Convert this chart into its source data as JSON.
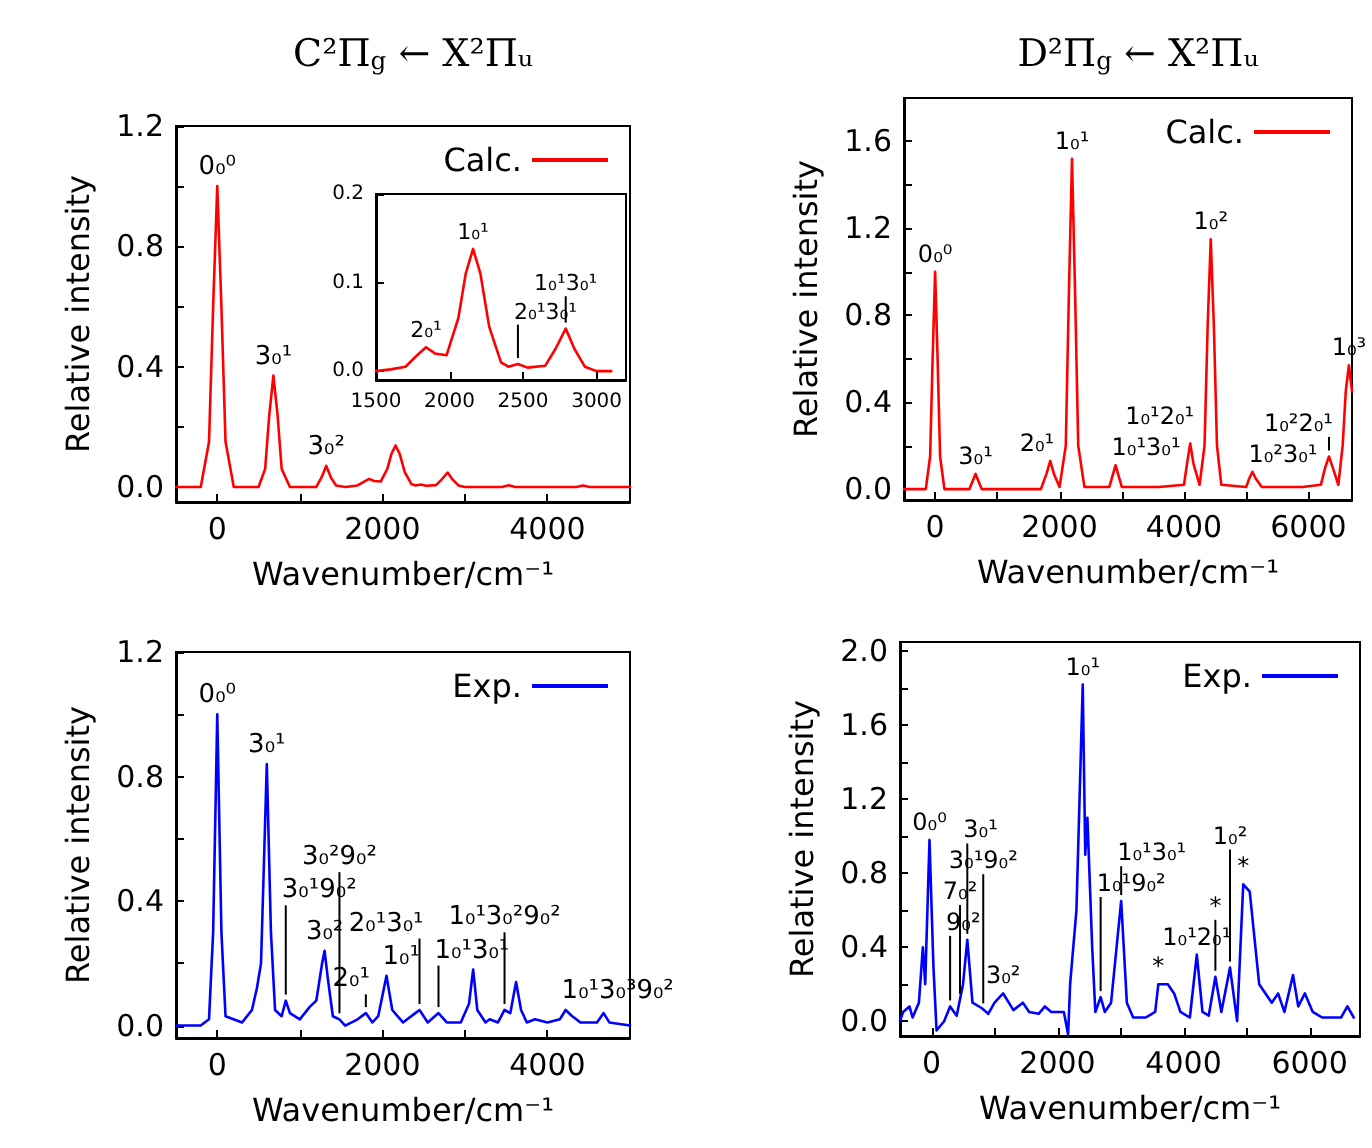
{
  "chart_data": [
    {
      "type": "line",
      "title": "C²Π$_{g}$ ← X²Πᵤ",
      "xlabel": "Wavenumber/cm⁻¹",
      "ylabel": "Relative intensity",
      "legend": "top right",
      "marker": "none",
      "x": [
        -500,
        -200,
        -100,
        -50,
        0,
        50,
        100,
        200,
        500,
        580,
        630,
        680,
        730,
        780,
        880,
        1200,
        1260,
        1320,
        1380,
        1440,
        1550,
        1700,
        1780,
        1840,
        1900,
        1980,
        2060,
        2110,
        2160,
        2210,
        2270,
        2350,
        2400,
        2465,
        2530,
        2650,
        2720,
        2790,
        2850,
        2920,
        3000,
        3450,
        3530,
        3610,
        4350,
        4430,
        4510,
        5000
      ],
      "series": [
        {
          "name": "Calc.",
          "color": "#ff0000",
          "values": [
            0,
            0,
            0.15,
            0.6,
            1.0,
            0.6,
            0.15,
            0,
            0,
            0.06,
            0.24,
            0.37,
            0.24,
            0.06,
            0,
            0,
            0.03,
            0.07,
            0.03,
            0.005,
            0,
            0.005,
            0.018,
            0.027,
            0.02,
            0.018,
            0.06,
            0.11,
            0.138,
            0.11,
            0.05,
            0.01,
            0.005,
            0.008,
            0.004,
            0.006,
            0.025,
            0.048,
            0.025,
            0.005,
            0,
            0,
            0.006,
            0,
            0,
            0.005,
            0,
            0
          ]
        }
      ],
      "xlim": [
        -500,
        5000
      ],
      "xticks": [
        0,
        {
          "value": 1000,
          "label": null
        },
        2000,
        {
          "value": 3000,
          "label": null
        },
        4000
      ],
      "ylim": [
        -0.05,
        1.2
      ],
      "yticks": [
        {
          "value": 0,
          "label": "0.0"
        },
        {
          "value": 0.2,
          "label": null
        },
        0.4,
        {
          "value": 0.6,
          "label": null
        },
        0.8,
        {
          "value": 1.0,
          "label": null
        },
        1.2
      ],
      "annotations": [
        {
          "text": "0₀⁰",
          "x": 0,
          "y": 1.0
        },
        {
          "text": "3₀¹",
          "x": 680,
          "y": 0.37
        },
        {
          "text": "3₀²",
          "x": 1320,
          "y": 0.07
        }
      ]
    },
    {
      "type": "line",
      "marker": "none",
      "x": [
        1500,
        1600,
        1700,
        1780,
        1840,
        1900,
        1980,
        2060,
        2110,
        2160,
        2210,
        2270,
        2350,
        2400,
        2465,
        2530,
        2650,
        2720,
        2790,
        2850,
        2920,
        3000,
        3100
      ],
      "series": [
        {
          "color": "#ff0000",
          "values": [
            0,
            0.002,
            0.005,
            0.018,
            0.027,
            0.02,
            0.018,
            0.06,
            0.11,
            0.138,
            0.11,
            0.05,
            0.01,
            0.005,
            0.008,
            0.004,
            0.006,
            0.025,
            0.048,
            0.025,
            0.005,
            0,
            0
          ]
        }
      ],
      "xlim": [
        1500,
        3200
      ],
      "xticks": [
        1500,
        2000,
        2500,
        3000
      ],
      "ylim": [
        -0.01,
        0.2
      ],
      "yticks": [
        {
          "value": 0,
          "label": "0.0"
        },
        0.1,
        0.2
      ],
      "annotations": [
        {
          "text": "2₀¹",
          "x": 1840,
          "y": 0.027
        },
        {
          "text": "1₀¹",
          "x": 2160,
          "y": 0.138
        },
        {
          "text": "2₀¹3₀¹",
          "x": 2465,
          "y": 0.008
        },
        {
          "text": "1₀¹3₀¹",
          "x": 2790,
          "y": 0.048
        }
      ]
    },
    {
      "type": "line",
      "title": "D²Π$_{g}$ ← X²Πᵤ",
      "xlabel": "Wavenumber/cm⁻¹",
      "ylabel": "Relative intensity",
      "legend": "top right",
      "marker": "none",
      "x": [
        -500,
        -150,
        -80,
        -40,
        0,
        40,
        80,
        150,
        550,
        650,
        750,
        1700,
        1790,
        1850,
        1910,
        2000,
        2100,
        2150,
        2200,
        2250,
        2300,
        2400,
        2800,
        2850,
        2900,
        2950,
        3000,
        3600,
        4000,
        4050,
        4100,
        4150,
        4250,
        4330,
        4380,
        4430,
        4480,
        4530,
        4600,
        5000,
        5050,
        5100,
        5150,
        5250,
        5900,
        6200,
        6270,
        6330,
        6390,
        6480,
        6550,
        6600,
        6650,
        6700
      ],
      "series": [
        {
          "name": "Calc.",
          "color": "#ff0000",
          "values": [
            0,
            0,
            0.15,
            0.6,
            1.0,
            0.6,
            0.15,
            0,
            0,
            0.07,
            0,
            0,
            0.07,
            0.13,
            0.07,
            0.01,
            0.2,
            0.9,
            1.52,
            0.9,
            0.2,
            0.01,
            0.01,
            0.06,
            0.11,
            0.06,
            0.01,
            0.01,
            0.02,
            0.12,
            0.21,
            0.12,
            0.02,
            0.2,
            0.75,
            1.15,
            0.75,
            0.2,
            0.02,
            0.01,
            0.05,
            0.08,
            0.05,
            0.01,
            0.01,
            0.02,
            0.1,
            0.15,
            0.1,
            0.02,
            0.2,
            0.45,
            0.57,
            0.45
          ]
        }
      ],
      "xlim": [
        -500,
        6700
      ],
      "xticks": [
        0,
        {
          "value": 1000,
          "label": null
        },
        2000,
        {
          "value": 3000,
          "label": null
        },
        4000,
        {
          "value": 5000,
          "label": null
        },
        6000
      ],
      "ylim": [
        -0.05,
        1.8
      ],
      "yticks": [
        {
          "value": 0,
          "label": "0.0"
        },
        {
          "value": 0.2,
          "label": null
        },
        0.4,
        {
          "value": 0.6,
          "label": null
        },
        0.8,
        {
          "value": 1.0,
          "label": null
        },
        1.2,
        {
          "value": 1.4,
          "label": null
        },
        1.6
      ],
      "annotations": [
        {
          "text": "0₀⁰",
          "x": 0,
          "y": 1.0
        },
        {
          "text": "3₀¹",
          "x": 650,
          "y": 0.07
        },
        {
          "text": "2₀¹",
          "x": 1850,
          "y": 0.13
        },
        {
          "text": "1₀¹",
          "x": 2200,
          "y": 1.52
        },
        {
          "text": "1₀¹3₀¹",
          "x": 2900,
          "y": 0.11
        },
        {
          "text": "1₀²",
          "x": 4430,
          "y": 1.15
        },
        {
          "text": "1₀¹2₀¹",
          "x": 4100,
          "y": 0.21
        },
        {
          "text": "1₀²3₀¹",
          "x": 5100,
          "y": 0.08
        },
        {
          "text": "1₀³",
          "x": 6650,
          "y": 0.57
        },
        {
          "text": "1₀²2₀¹",
          "x": 6330,
          "y": 0.15
        }
      ]
    },
    {
      "type": "line",
      "xlabel": "Wavenumber/cm⁻¹",
      "ylabel": "Relative intensity",
      "legend": "top right",
      "marker": "none",
      "x": [
        -500,
        -200,
        -100,
        -50,
        0,
        50,
        100,
        300,
        420,
        480,
        530,
        600,
        650,
        700,
        780,
        830,
        880,
        1000,
        1120,
        1200,
        1270,
        1300,
        1340,
        1400,
        1480,
        1550,
        1700,
        1800,
        1880,
        1950,
        2050,
        2120,
        2250,
        2400,
        2450,
        2550,
        2680,
        2780,
        2950,
        3050,
        3100,
        3150,
        3250,
        3300,
        3400,
        3480,
        3550,
        3620,
        3680,
        3750,
        3850,
        4000,
        4150,
        4220,
        4300,
        4400,
        4600,
        4680,
        4750,
        5000
      ],
      "series": [
        {
          "name": "Exp.",
          "color": "#0000ff",
          "values": [
            0,
            0,
            0.02,
            0.3,
            1.0,
            0.3,
            0.03,
            0.01,
            0.05,
            0.12,
            0.2,
            0.84,
            0.3,
            0.05,
            0.03,
            0.08,
            0.04,
            0.02,
            0.06,
            0.08,
            0.2,
            0.24,
            0.15,
            0.03,
            0.02,
            0,
            0.02,
            0.04,
            0.01,
            0.03,
            0.16,
            0.05,
            0.01,
            0.04,
            0.05,
            0.01,
            0.04,
            0.01,
            0.01,
            0.07,
            0.18,
            0.05,
            0.01,
            0.02,
            0.01,
            0.05,
            0.04,
            0.14,
            0.05,
            0.01,
            0.02,
            0.01,
            0.02,
            0.05,
            0.03,
            0.01,
            0.01,
            0.04,
            0.01,
            0
          ]
        }
      ],
      "xlim": [
        -500,
        5000
      ],
      "xticks": [
        0,
        {
          "value": 1000,
          "label": null
        },
        2000,
        {
          "value": 3000,
          "label": null
        },
        4000
      ],
      "ylim": [
        -0.04,
        1.2
      ],
      "yticks": [
        {
          "value": 0,
          "label": "0.0"
        },
        {
          "value": 0.2,
          "label": null
        },
        0.4,
        {
          "value": 0.6,
          "label": null
        },
        0.8,
        {
          "value": 1.0,
          "label": null
        },
        1.2
      ],
      "annotations": [
        {
          "text": "0₀⁰",
          "x": 0,
          "y": 1.0
        },
        {
          "text": "3₀¹",
          "x": 600,
          "y": 0.84
        },
        {
          "text": "3₀²",
          "x": 1300,
          "y": 0.24
        },
        {
          "text": "2₀¹",
          "x": 1800,
          "y": 0.04
        },
        {
          "text": "1₀¹",
          "x": 2050,
          "y": 0.16
        },
        {
          "text": "1₀¹3₀¹",
          "x": 2680,
          "y": 0.04
        },
        {
          "text": "2₀¹3₀¹",
          "x": 2450,
          "y": 0.05
        },
        {
          "text": "3₀¹9₀²",
          "x": 830,
          "y": 0.08
        },
        {
          "text": "3₀²9₀²",
          "x": 1480,
          "y": 0.02
        },
        {
          "text": "1₀¹3₀²9₀²",
          "x": 3480,
          "y": 0.05
        },
        {
          "text": "1₀¹3₀³9₀²",
          "x": 4220,
          "y": 0.05
        }
      ]
    },
    {
      "type": "line",
      "xlabel": "Wavenumber/cm⁻¹",
      "ylabel": "Relative intensity",
      "legend": "top right",
      "marker": "none",
      "x": [
        -500,
        -450,
        -350,
        -300,
        -200,
        -137,
        -100,
        -32,
        30,
        80,
        200,
        295,
        400,
        500,
        568,
        650,
        800,
        900,
        1000,
        1137,
        1300,
        1450,
        1550,
        1700,
        1800,
        1900,
        2100,
        2168,
        2200,
        2300,
        2400,
        2440,
        2474,
        2550,
        2600,
        2684,
        2750,
        2850,
        3010,
        3100,
        3200,
        3400,
        3550,
        3600,
        3750,
        3850,
        3950,
        4100,
        4210,
        4300,
        4400,
        4505,
        4600,
        4737,
        4850,
        4947,
        5050,
        5200,
        5400,
        5500,
        5600,
        5737,
        5820,
        5926,
        6050,
        6200,
        6500,
        6600,
        6700
      ],
      "series": [
        {
          "name": "Exp.",
          "color": "#0000ff",
          "values": [
            0,
            0.05,
            0.08,
            0.02,
            0.1,
            0.4,
            0.2,
            0.98,
            0.3,
            -0.05,
            0,
            0.08,
            0.03,
            0.2,
            0.44,
            0.1,
            0.07,
            0.04,
            0.1,
            0.15,
            0.06,
            0.1,
            0.05,
            0.04,
            0.08,
            0.05,
            0.05,
            -0.07,
            0.2,
            0.6,
            1.82,
            0.9,
            1.1,
            0.4,
            0.05,
            0.13,
            0.05,
            0.1,
            0.65,
            0.1,
            0.02,
            0.02,
            0.05,
            0.2,
            0.2,
            0.15,
            0.05,
            0.02,
            0.36,
            0.05,
            0.03,
            0.24,
            0.05,
            0.29,
            0,
            0.74,
            0.7,
            0.2,
            0.1,
            0.15,
            0.05,
            0.25,
            0.08,
            0.15,
            0.05,
            0.02,
            0.02,
            0.08,
            0.02
          ]
        }
      ],
      "xlim": [
        -500,
        6800
      ],
      "xticks": [
        0,
        {
          "value": 1000,
          "label": null
        },
        2000,
        {
          "value": 3000,
          "label": null
        },
        4000,
        {
          "value": 5000,
          "label": null
        },
        6000
      ],
      "ylim": [
        -0.08,
        2.05
      ],
      "yticks": [
        {
          "value": 0,
          "label": "0.0"
        },
        {
          "value": 0.2,
          "label": null
        },
        0.4,
        {
          "value": 0.6,
          "label": null
        },
        0.8,
        {
          "value": 1.0,
          "label": null
        },
        1.2,
        {
          "value": 1.4,
          "label": null
        },
        1.6,
        {
          "value": 1.8,
          "label": null
        },
        {
          "value": 2.0,
          "label": "2.0"
        }
      ],
      "annotations": [
        {
          "text": "0₀⁰",
          "x": -32,
          "y": 0.98
        },
        {
          "text": "9₀²",
          "x": 295,
          "y": 0.08
        },
        {
          "text": "7₀²",
          "x": 452,
          "y": 0.115
        },
        {
          "text": "3₀²",
          "x": 1137,
          "y": 0.15
        },
        {
          "text": "3₀¹9₀²",
          "x": 821,
          "y": 0.064
        },
        {
          "text": "3₀¹",
          "x": 568,
          "y": 0.44
        },
        {
          "text": "1₀¹",
          "x": 2400,
          "y": 1.82
        },
        {
          "text": "1₀¹9₀²",
          "x": 2684,
          "y": 0.13
        },
        {
          "text": "1₀¹3₀¹",
          "x": 3010,
          "y": 0.65
        },
        {
          "text": "*",
          "x": 3600,
          "y": 0.2
        },
        {
          "text": "1₀¹2₀¹",
          "x": 4210,
          "y": 0.36
        },
        {
          "text": "*",
          "x": 4505,
          "y": 0.24
        },
        {
          "text": "*",
          "x": 4947,
          "y": 0.74
        },
        {
          "text": "1₀²",
          "x": 4737,
          "y": 0.29
        }
      ]
    }
  ]
}
